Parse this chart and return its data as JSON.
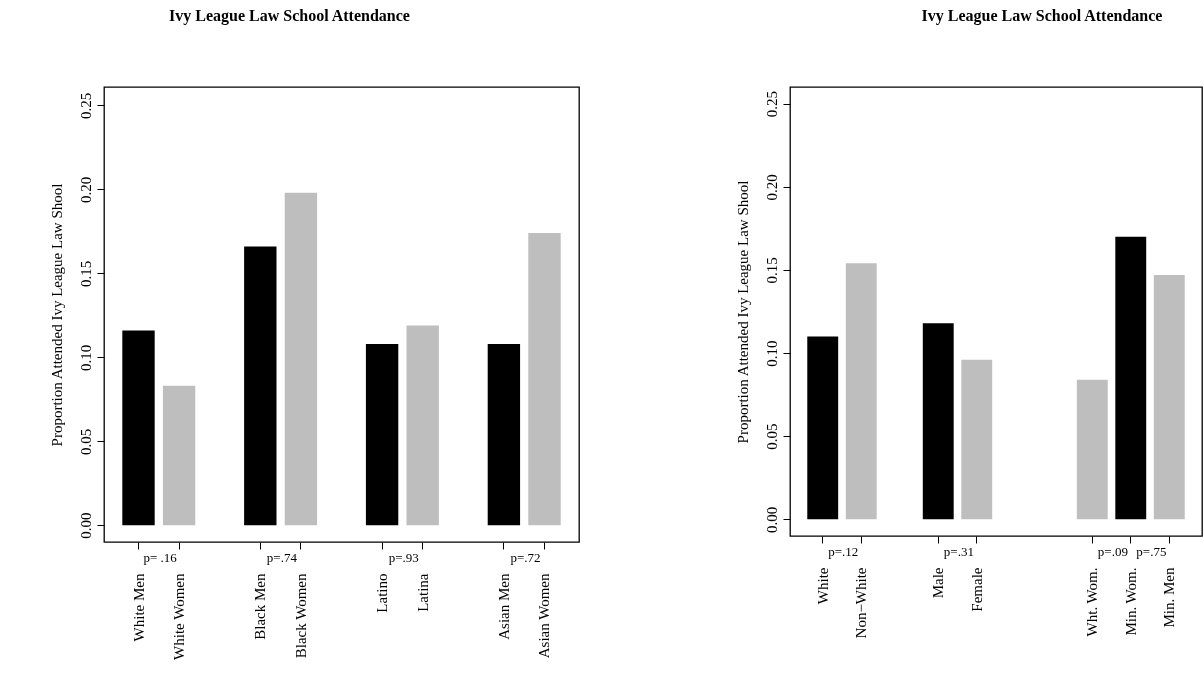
{
  "chart_data": [
    {
      "type": "bar",
      "title": "Ivy League Law School Attendance",
      "ylabel": "Proportion Attended Ivy League Law Shool",
      "categories": [
        "White Men",
        "White Women",
        null,
        "Black Men",
        "Black Women",
        null,
        "Latino",
        "Latina",
        null,
        "Asian Men",
        "Asian Women"
      ],
      "values": [
        0.116,
        0.083,
        null,
        0.166,
        0.198,
        null,
        0.108,
        0.119,
        null,
        0.108,
        0.174
      ],
      "colors": [
        "#000000",
        "#bebebe",
        null,
        "#000000",
        "#bebebe",
        null,
        "#000000",
        "#bebebe",
        null,
        "#000000",
        "#bebebe"
      ],
      "ylim": [
        -0.01,
        0.261
      ],
      "yticks": [
        {
          "value": 0,
          "label": "0.00"
        },
        0.05,
        {
          "value": 0.1,
          "label": "0.10"
        },
        0.15,
        {
          "value": 0.2,
          "label": "0.20"
        },
        0.25
      ],
      "annotations": [
        "p= .16",
        "p=.74",
        "p=.93",
        "p=.72"
      ]
    },
    {
      "type": "bar",
      "title": "Ivy League Law School Attendance",
      "ylabel": "Proportion Attended Ivy League Law Shool",
      "categories": [
        "White",
        "Non−White",
        null,
        "Male",
        "Female",
        null,
        null,
        "Wht. Wom.",
        "Min. Wom.",
        "Min. Men"
      ],
      "values": [
        0.11,
        0.154,
        null,
        0.118,
        0.096,
        null,
        null,
        0.084,
        0.17,
        0.147
      ],
      "colors": [
        "#000000",
        "#bebebe",
        null,
        "#000000",
        "#bebebe",
        null,
        null,
        "#bebebe",
        "#000000",
        "#bebebe"
      ],
      "ylim": [
        -0.01,
        0.26
      ],
      "yticks": [
        {
          "value": 0,
          "label": "0.00"
        },
        0.05,
        {
          "value": 0.1,
          "label": "0.10"
        },
        0.15,
        {
          "value": 0.2,
          "label": "0.20"
        },
        0.25
      ],
      "annotations": [
        "p=.12",
        "p=.31",
        "p=.09",
        "p=.75"
      ]
    }
  ]
}
